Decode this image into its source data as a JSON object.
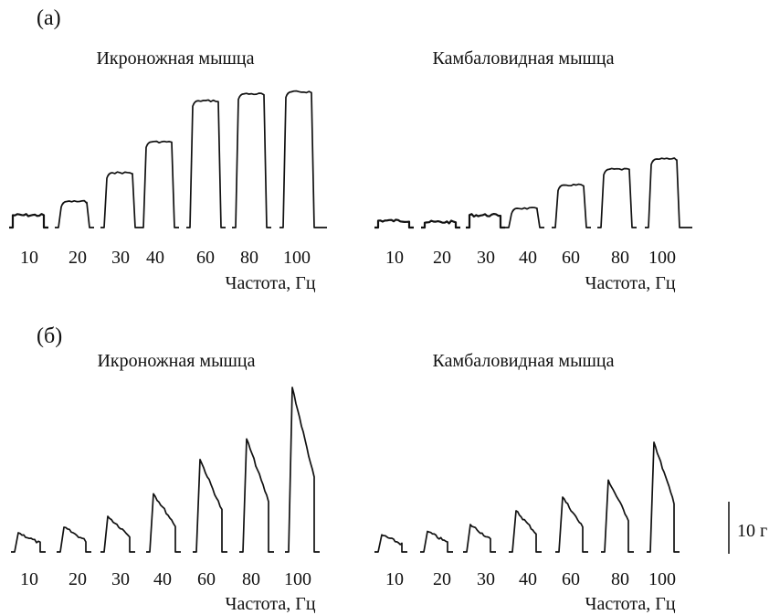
{
  "figure": {
    "scale_bar_label": "10 г"
  },
  "chart_data": [
    {
      "type": "line",
      "panel_label": "(а)",
      "title": "Икроножная мышца",
      "xlabel": "Частота, Гц",
      "ylabel": "",
      "categories": [
        "10",
        "20",
        "30",
        "40",
        "60",
        "80",
        "100"
      ],
      "values": [
        1.8,
        3.8,
        8.0,
        12.5,
        18.5,
        19.5,
        19.8
      ],
      "ylim": [
        0,
        21
      ]
    },
    {
      "type": "line",
      "panel_label": "",
      "title": "Камбаловидная мышца",
      "xlabel": "Частота, Гц",
      "ylabel": "",
      "categories": [
        "10",
        "20",
        "30",
        "40",
        "60",
        "80",
        "100"
      ],
      "values": [
        1.0,
        0.8,
        1.8,
        2.8,
        6.2,
        8.5,
        10.0
      ],
      "ylim": [
        0,
        21
      ]
    },
    {
      "type": "line",
      "panel_label": "(б)",
      "title": "Икроножная мышца",
      "xlabel": "Частота, Гц",
      "ylabel": "",
      "categories": [
        "10",
        "20",
        "30",
        "40",
        "60",
        "80",
        "100"
      ],
      "values": [
        2.8,
        3.6,
        5.2,
        8.5,
        13.5,
        16.5,
        24.0
      ],
      "ylim": [
        0,
        26
      ]
    },
    {
      "type": "line",
      "panel_label": "",
      "title": "Камбаловидная мышца",
      "xlabel": "Частота, Гц",
      "ylabel": "",
      "categories": [
        "10",
        "20",
        "30",
        "40",
        "60",
        "80",
        "100"
      ],
      "values": [
        2.5,
        3.0,
        4.0,
        6.0,
        8.0,
        10.5,
        16.0
      ],
      "ylim": [
        0,
        26
      ]
    }
  ]
}
